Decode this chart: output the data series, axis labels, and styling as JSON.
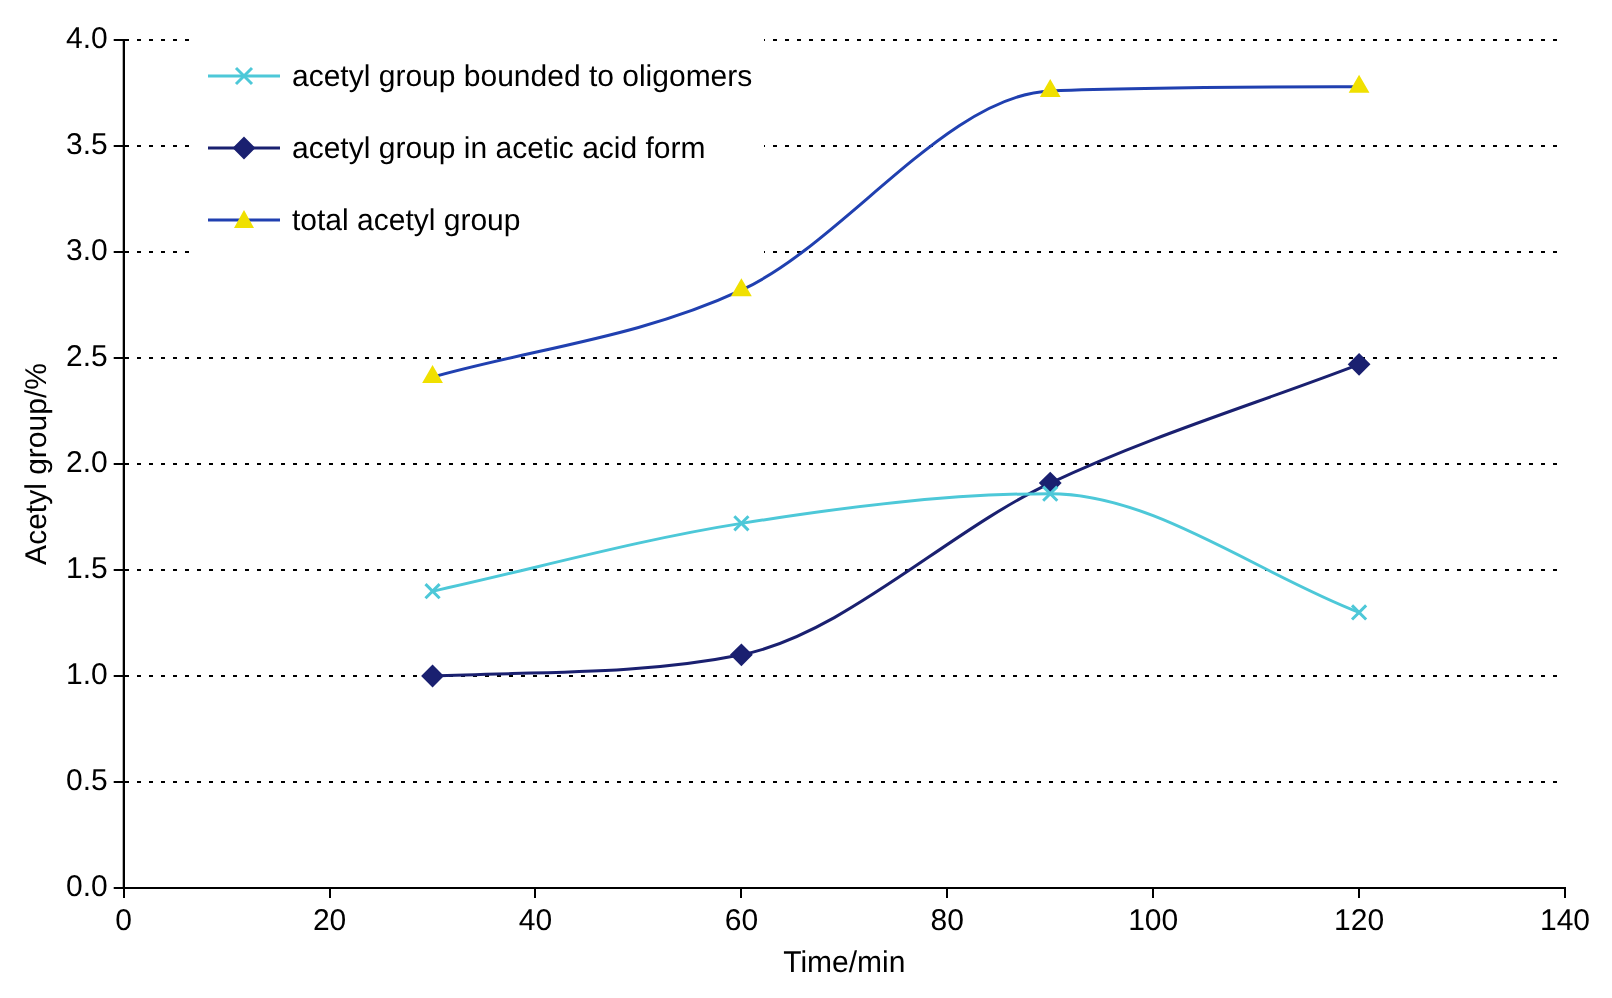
{
  "chart_data": {
    "type": "line",
    "xlabel": "Time/min",
    "ylabel": "Acetyl group/%",
    "x": [
      30,
      60,
      90,
      120
    ],
    "series": [
      {
        "name": "acetyl group bounded to oligomers",
        "color": "#4dc8d8",
        "marker": "cross",
        "values": [
          1.4,
          1.72,
          1.86,
          1.3
        ]
      },
      {
        "name": "acetyl group in acetic acid form",
        "color": "#1a2070",
        "marker": "diamond",
        "values": [
          1.0,
          1.1,
          1.91,
          2.47
        ]
      },
      {
        "name": "total acetyl group",
        "color": "#2040b0",
        "marker": "triangle",
        "colors": [
          "#f0e000",
          "#f0e000",
          "#f0e000",
          "#f0e000"
        ],
        "values": [
          2.41,
          2.82,
          3.76,
          3.78
        ]
      }
    ],
    "xlim": [
      0,
      140
    ],
    "xticks": [
      0,
      20,
      40,
      60,
      80,
      100,
      120,
      140
    ],
    "ylim": [
      0,
      4
    ],
    "yticks": [
      {
        "value": 0,
        "label": "0.0"
      },
      {
        "value": 0.5,
        "label": "0.5"
      },
      {
        "value": 1,
        "label": "1.0"
      },
      {
        "value": 1.5,
        "label": "1.5"
      },
      {
        "value": 2,
        "label": "2.0"
      },
      {
        "value": 2.5,
        "label": "2.5"
      },
      {
        "value": 3,
        "label": "3.0"
      },
      {
        "value": 3.5,
        "label": "3.5"
      },
      {
        "value": 4,
        "label": "4.0"
      }
    ],
    "grid": "y",
    "legend": "top left",
    "line_style": "solid"
  }
}
